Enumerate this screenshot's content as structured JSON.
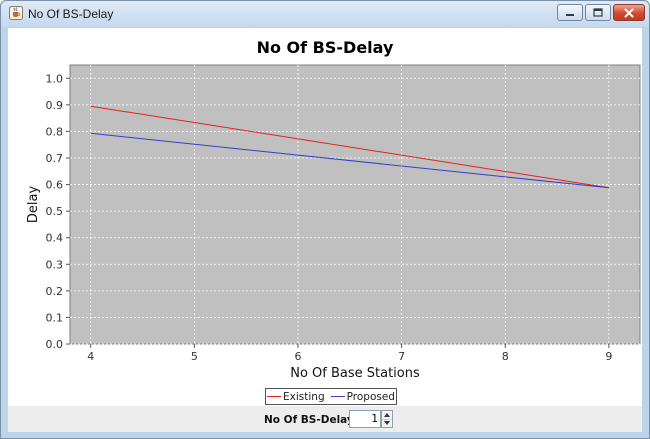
{
  "window": {
    "title": "No Of BS-Delay",
    "icon": "java-cup-icon",
    "controls": [
      "minimize-icon",
      "maximize-icon",
      "close-icon"
    ]
  },
  "colors": {
    "plot_background": "#c0c0c0",
    "gridlines": "#ffffff",
    "existing": "#e8201c",
    "proposed": "#3b3bcf"
  },
  "chart_data": {
    "type": "line",
    "title": "No Of BS-Delay",
    "xlabel": "No Of Base Stations",
    "ylabel": "Delay",
    "xlim": [
      3.8,
      9.3
    ],
    "ylim": [
      0.0,
      1.05
    ],
    "xticks": [
      4,
      5,
      6,
      7,
      8,
      9
    ],
    "yticks": [
      0.0,
      0.1,
      0.2,
      0.3,
      0.4,
      0.5,
      0.6,
      0.7,
      0.8,
      0.9,
      1.0
    ],
    "grid": true,
    "legend_position": "bottom",
    "series": [
      {
        "name": "Existing",
        "x": [
          4,
          9
        ],
        "y": [
          0.895,
          0.588
        ]
      },
      {
        "name": "Proposed",
        "x": [
          4,
          9
        ],
        "y": [
          0.793,
          0.588
        ]
      }
    ]
  },
  "controls": {
    "spinner_label": "No Of BS-Delay",
    "spinner_value": "1"
  }
}
